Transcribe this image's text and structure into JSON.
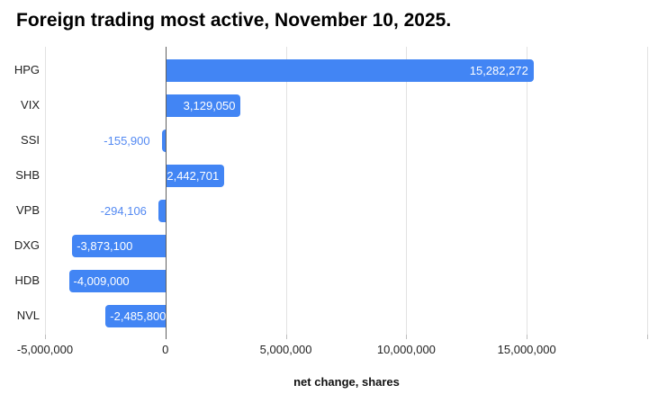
{
  "title": "Foreign trading most active, November 10, 2025.",
  "chart_data": {
    "type": "bar",
    "orientation": "horizontal",
    "title": "Foreign trading most active, November 10, 2025.",
    "xlabel": "net change, shares",
    "ylabel": "",
    "categories": [
      "HPG",
      "VIX",
      "SSI",
      "SHB",
      "VPB",
      "DXG",
      "HDB",
      "NVL"
    ],
    "values": [
      15282272,
      3129050,
      -155900,
      2442701,
      -294106,
      -3873100,
      -4009000,
      -2485800
    ],
    "value_labels": [
      "15,282,272",
      "3,129,050",
      "-155,900",
      "2,442,701",
      "-294,106",
      "-3,873,100",
      "-4,009,000",
      "-2,485,800"
    ],
    "label_placement": [
      "inside",
      "inside",
      "outside",
      "inside",
      "outside",
      "inside",
      "inside",
      "inside"
    ],
    "xlim": [
      -5000000,
      20000000
    ],
    "x_ticks": [
      -5000000,
      0,
      5000000,
      10000000,
      15000000
    ],
    "x_tick_labels": [
      "-5,000,000",
      "0",
      "5,000,000",
      "10,000,000",
      "15,000,000"
    ],
    "gridline_values": [
      -5000000,
      0,
      5000000,
      10000000,
      15000000,
      20000000
    ],
    "grid": true,
    "legend_position": "none",
    "colors": {
      "bar": "#4285f4",
      "label_inside": "#ffffff",
      "label_outside": "#5389f2",
      "zero_axis": "#616161",
      "gridline": "#e2e2e2",
      "tick": "#bdbdbd",
      "axis_text": "#222222",
      "title_text": "#000000"
    }
  }
}
